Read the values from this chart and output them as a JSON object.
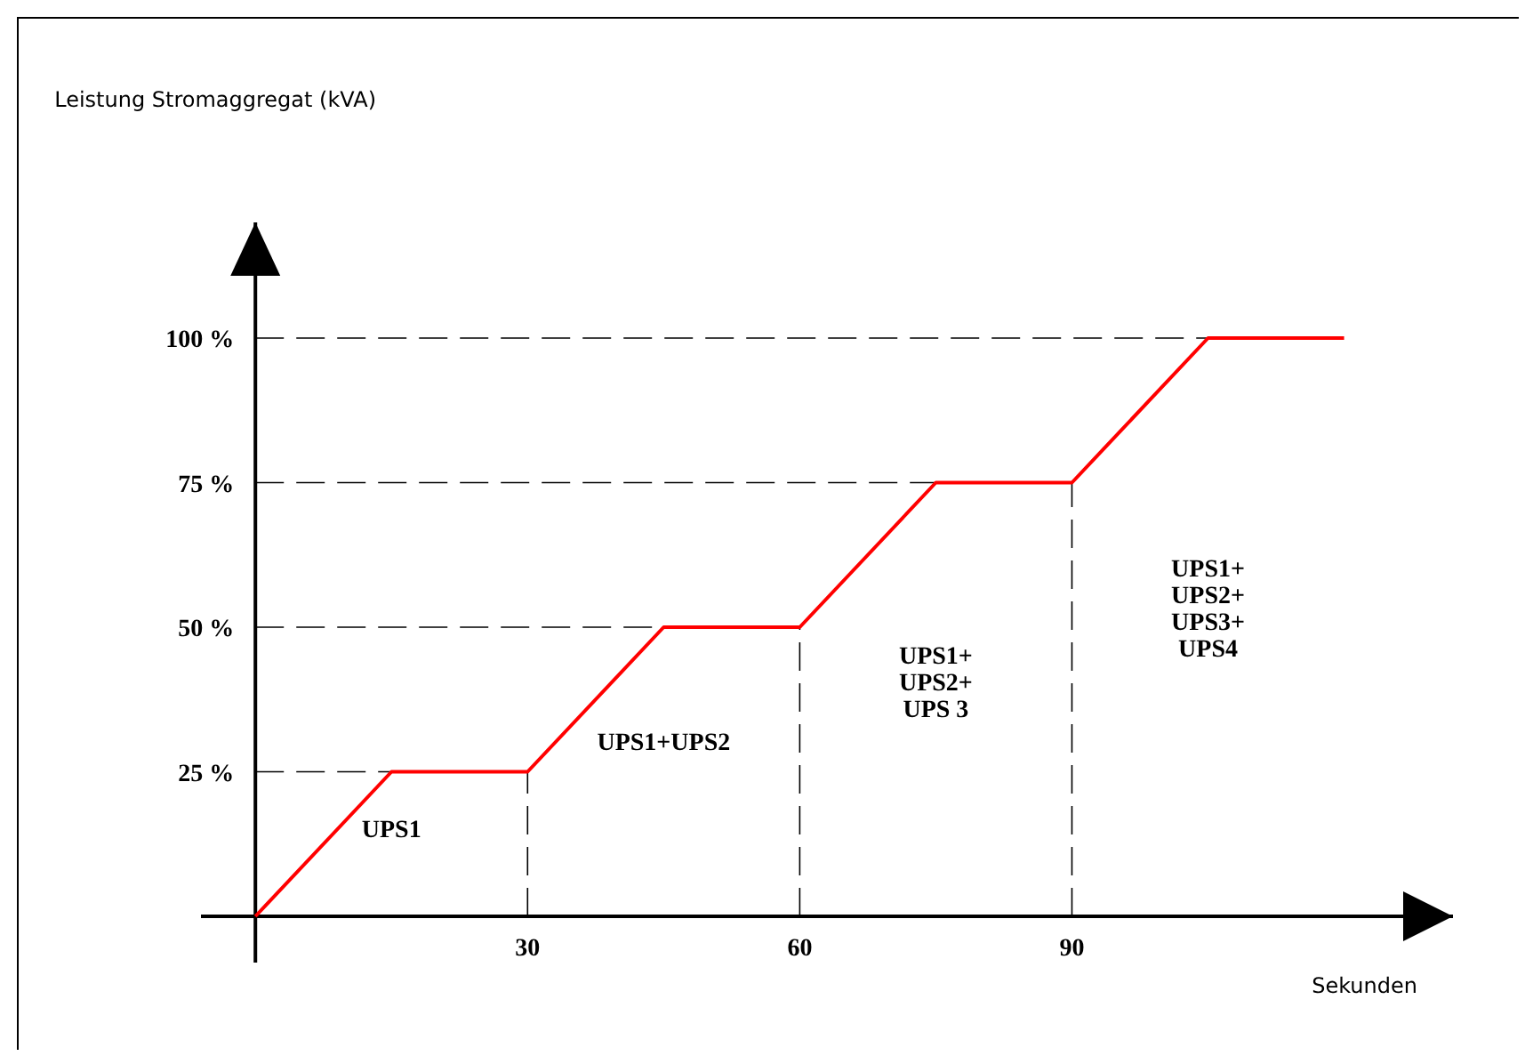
{
  "chart_data": {
    "type": "line",
    "xlabel": "Sekunden",
    "x": [
      0,
      15,
      30,
      45,
      60,
      75,
      90,
      105,
      120
    ],
    "series": [
      {
        "color": "#ff0000",
        "values": [
          0,
          25,
          25,
          50,
          50,
          75,
          75,
          100,
          100
        ]
      }
    ],
    "xlim": [
      -6,
      132
    ],
    "ylim": [
      -8,
      120
    ],
    "xticks": [
      30,
      60,
      90
    ],
    "yticks": [
      {
        "value": 25,
        "label": "25 %"
      },
      {
        "value": 50,
        "label": "50 %"
      },
      {
        "value": 75,
        "label": "75 %"
      },
      {
        "value": 100,
        "label": "100 %"
      }
    ],
    "ref_lines": [
      {
        "axis": "y",
        "value": 25,
        "color": "#000000",
        "line_style": "dashed"
      },
      {
        "axis": "y",
        "value": 50,
        "color": "#000000",
        "line_style": "dashed"
      },
      {
        "axis": "y",
        "value": 75,
        "color": "#000000",
        "line_style": "dashed"
      },
      {
        "axis": "y",
        "value": 100,
        "color": "#000000",
        "line_style": "dashed"
      },
      {
        "axis": "x",
        "value": 30,
        "color": "#000000",
        "line_style": "dashed"
      },
      {
        "axis": "x",
        "value": 60,
        "color": "#000000",
        "line_style": "dashed"
      },
      {
        "axis": "x",
        "value": 90,
        "color": "#000000",
        "line_style": "dashed"
      }
    ],
    "annotations": [
      "Leistung Stromaggregat (kVA)",
      "UPS1",
      "UPS1+UPS2",
      "UPS1+\nUPS2+\nUPS 3",
      "UPS1+\nUPS2+\nUPS3+\nUPS4"
    ],
    "grid": false,
    "marker": "none",
    "line_style": "solid"
  }
}
